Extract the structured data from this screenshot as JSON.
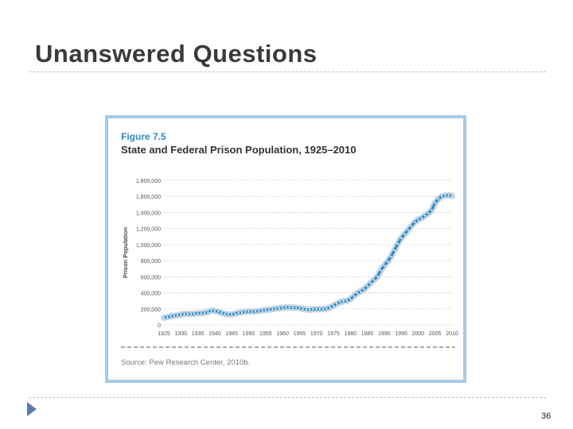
{
  "slide": {
    "title": "Unanswered Questions",
    "page_number": "36"
  },
  "figure": {
    "number": "Figure 7.5",
    "title": "State and Federal Prison Population, 1925–2010",
    "source": "Source: Pew Research Center, 2010b."
  },
  "colors": {
    "line": "#2a8ac9",
    "halo": "#c9d5e1",
    "frame": "#a9c9e6",
    "grid": "#cfcfcf"
  },
  "chart_data": {
    "type": "line",
    "title": "State and Federal Prison Population, 1925–2010",
    "xlabel": "",
    "ylabel": "Prison Population",
    "xlim": [
      1925,
      2010
    ],
    "ylim": [
      0,
      1800000
    ],
    "x_ticks": [
      1925,
      1930,
      1935,
      1940,
      1945,
      1950,
      1955,
      1960,
      1965,
      1970,
      1975,
      1980,
      1985,
      1990,
      1995,
      2000,
      2005,
      2010
    ],
    "y_ticks": [
      0,
      200000,
      400000,
      600000,
      800000,
      1000000,
      1200000,
      1400000,
      1600000,
      1800000
    ],
    "y_tick_labels": [
      "0",
      "200,000",
      "400,000",
      "600,000",
      "800,000",
      "1,000,000",
      "1,200,000",
      "1,400,000",
      "1,600,000",
      "1,800,000"
    ],
    "grid": true,
    "series": [
      {
        "name": "State and Federal Prison Population",
        "x": [
          1925,
          1926,
          1927,
          1928,
          1929,
          1930,
          1931,
          1932,
          1933,
          1934,
          1935,
          1936,
          1937,
          1938,
          1939,
          1940,
          1941,
          1942,
          1943,
          1944,
          1945,
          1946,
          1947,
          1948,
          1949,
          1950,
          1951,
          1952,
          1953,
          1954,
          1955,
          1956,
          1957,
          1958,
          1959,
          1960,
          1961,
          1962,
          1963,
          1964,
          1965,
          1966,
          1967,
          1968,
          1969,
          1970,
          1971,
          1972,
          1973,
          1974,
          1975,
          1976,
          1977,
          1978,
          1979,
          1980,
          1981,
          1982,
          1983,
          1984,
          1985,
          1986,
          1987,
          1988,
          1989,
          1990,
          1991,
          1992,
          1993,
          1994,
          1995,
          1996,
          1997,
          1998,
          1999,
          2000,
          2001,
          2002,
          2003,
          2004,
          2005,
          2006,
          2007,
          2008,
          2009,
          2010
        ],
        "values": [
          91000,
          97000,
          109000,
          116000,
          120000,
          129000,
          137000,
          137000,
          136000,
          138000,
          144000,
          145000,
          152000,
          160000,
          179000,
          174000,
          165000,
          150000,
          137000,
          132000,
          133000,
          140000,
          151000,
          155000,
          164000,
          166000,
          165000,
          168000,
          173000,
          182000,
          185000,
          190000,
          196000,
          205000,
          208000,
          213000,
          220000,
          218000,
          217000,
          214000,
          211000,
          199000,
          194000,
          188000,
          197000,
          196000,
          198000,
          196000,
          204000,
          218000,
          240000,
          263000,
          285000,
          294000,
          301000,
          320000,
          360000,
          396000,
          416000,
          443000,
          481000,
          522000,
          560000,
          604000,
          680000,
          740000,
          790000,
          850000,
          930000,
          1010000,
          1080000,
          1130000,
          1180000,
          1230000,
          1280000,
          1310000,
          1330000,
          1360000,
          1390000,
          1430000,
          1520000,
          1570000,
          1600000,
          1610000,
          1615000,
          1605000
        ]
      }
    ]
  }
}
